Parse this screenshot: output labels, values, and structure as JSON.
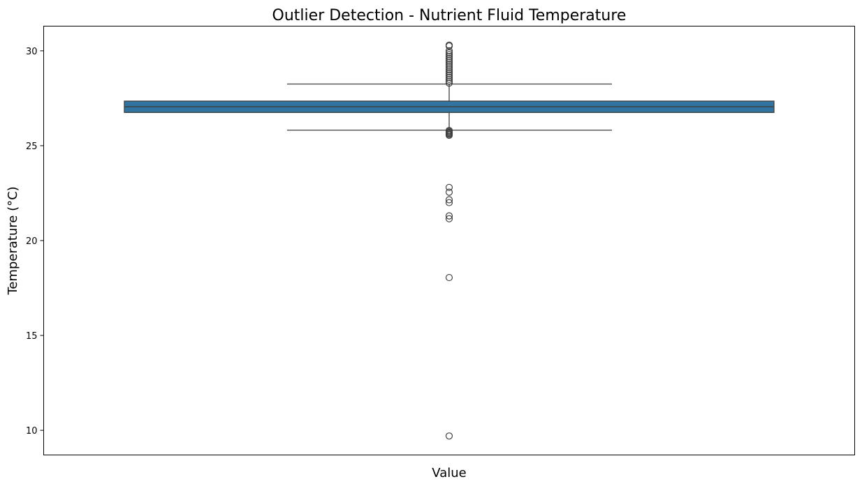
{
  "chart_data": {
    "type": "box",
    "title": "Outlier Detection - Nutrient Fluid Temperature",
    "xlabel": "Value",
    "ylabel": "Temperature (°C)",
    "ylim": [
      8.7,
      31.3
    ],
    "yticks": [
      10,
      15,
      20,
      25,
      30
    ],
    "grid": false,
    "series": [
      {
        "q1": 26.75,
        "median": 27.05,
        "q3": 27.35,
        "whisker_low": 25.82,
        "whisker_high": 28.25,
        "outliers_high": [
          28.3,
          28.4,
          28.5,
          28.6,
          28.7,
          28.8,
          28.9,
          29.0,
          29.1,
          29.2,
          29.3,
          29.4,
          29.5,
          29.6,
          29.7,
          29.8,
          29.9,
          30.0,
          30.25,
          30.3
        ],
        "outliers_low": [
          25.55,
          25.6,
          25.65,
          25.7,
          25.75,
          25.8,
          22.8,
          22.55,
          22.15,
          22.0,
          21.3,
          21.15,
          18.05,
          9.7
        ]
      }
    ],
    "colors": {
      "box": "#3274a1",
      "line": "#3f3f3f"
    }
  }
}
